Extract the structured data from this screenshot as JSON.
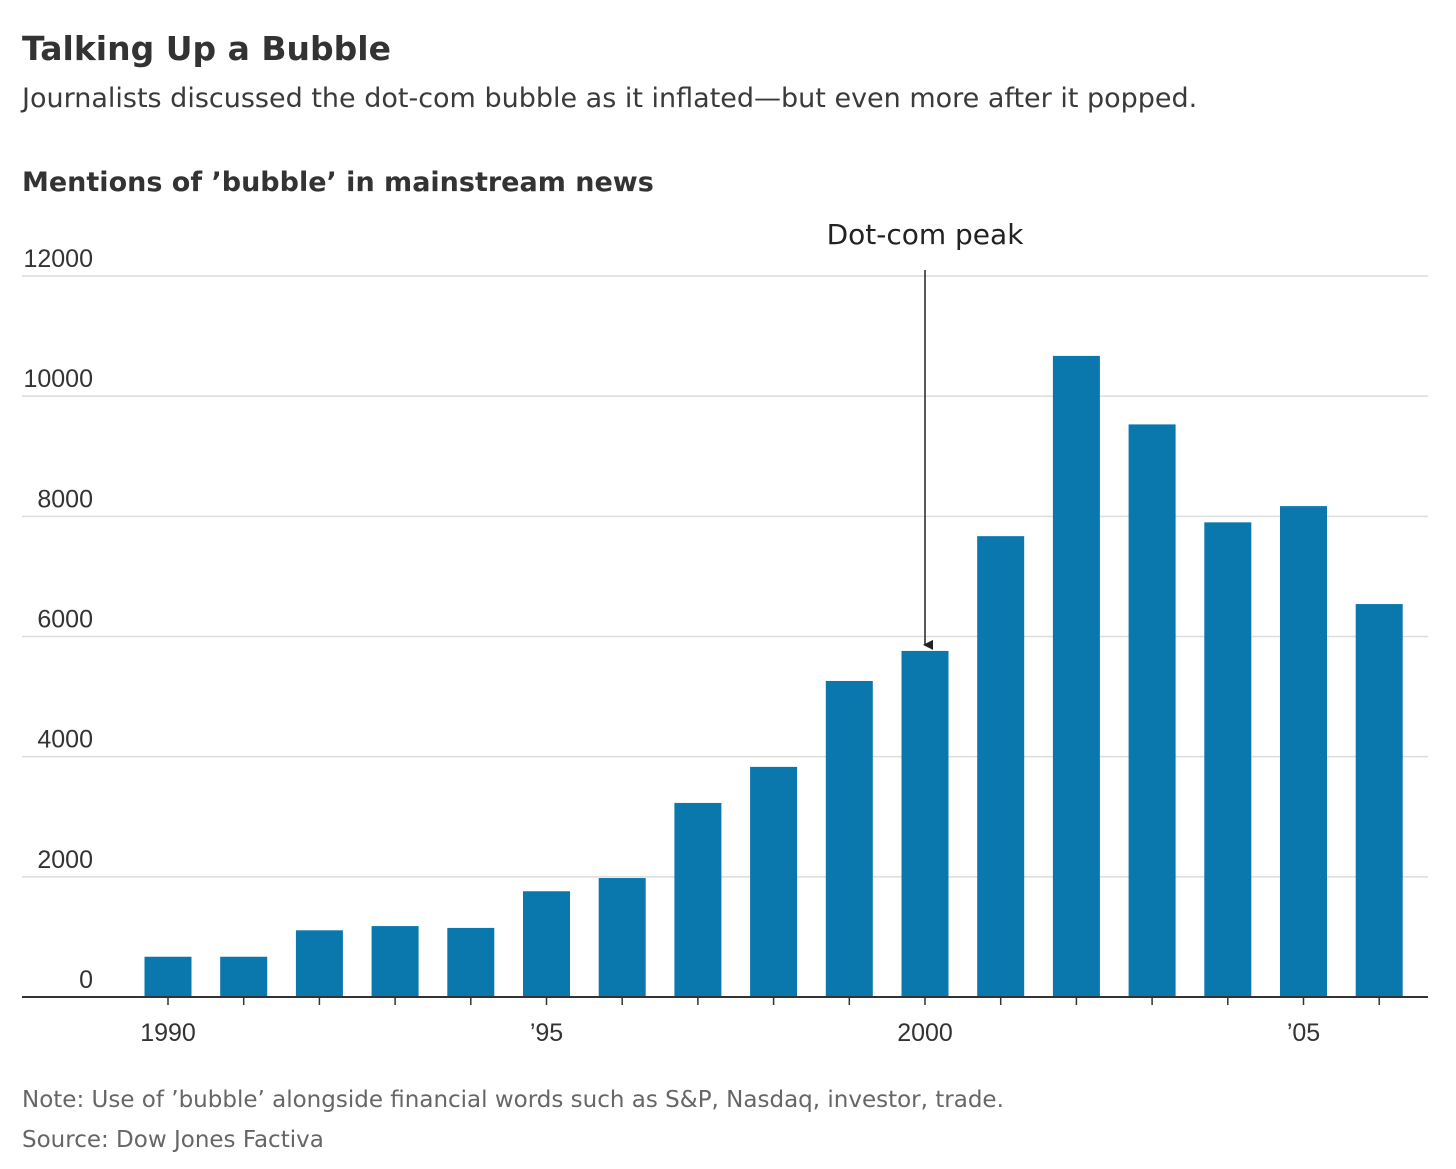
{
  "title": "Talking Up a Bubble",
  "subtitle": "Journalists discussed the dot-com bubble as it inflated—but even more after it popped.",
  "chart_data": {
    "type": "bar",
    "title": "Mentions of ’bubble’ in mainstream news",
    "categories": [
      "1990",
      null,
      null,
      null,
      null,
      "’95",
      null,
      null,
      null,
      null,
      "2000",
      null,
      null,
      null,
      null,
      "’05",
      null
    ],
    "values": [
      670,
      670,
      1110,
      1180,
      1150,
      1760,
      1980,
      3230,
      3830,
      5260,
      5760,
      7670,
      10670,
      9530,
      7900,
      8170,
      6540
    ],
    "color": "#0a77ad",
    "ylim": [
      0,
      12000
    ],
    "yticks": [
      0,
      2000,
      4000,
      6000,
      8000,
      10000,
      12000
    ],
    "grid": true,
    "annotations": [
      {
        "text": "Dot-com peak",
        "x": "2000"
      }
    ]
  },
  "note": "Note: Use of ’bubble’ alongside financial words such as S&P, Nasdaq, investor, trade.",
  "source": "Source: Dow Jones Factiva"
}
